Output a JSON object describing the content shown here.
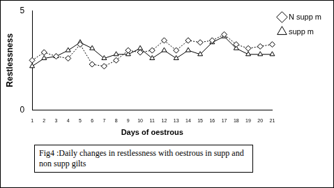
{
  "chart_data": {
    "type": "line",
    "title": "Fig4 :Daily changes in restlessness with oestrous in supp and non supp gilts",
    "x_label": "Days of oestrous",
    "y_label": "Restlessness",
    "categories": [
      "1",
      "2",
      "3",
      "4",
      "5",
      "6",
      "7",
      "8",
      "9",
      "10",
      "11",
      "12",
      "13",
      "14",
      "15",
      "16",
      "17",
      "18",
      "19",
      "20",
      "21"
    ],
    "series": [
      {
        "name": "N supp m",
        "color": "#000000",
        "marker": "diamond",
        "line_style": "dotted",
        "values": [
          2.5,
          2.9,
          2.7,
          2.6,
          3.3,
          2.3,
          2.2,
          2.5,
          3.0,
          2.9,
          3.0,
          3.5,
          3.0,
          3.5,
          3.4,
          3.5,
          3.8,
          3.3,
          3.1,
          3.2,
          3.3
        ]
      },
      {
        "name": "supp m",
        "color": "#000000",
        "marker": "triangle",
        "line_style": "solid",
        "values": [
          2.2,
          2.6,
          2.7,
          3.0,
          3.4,
          3.1,
          2.6,
          2.8,
          2.8,
          3.1,
          2.6,
          3.0,
          2.6,
          3.0,
          2.8,
          3.4,
          3.7,
          3.1,
          2.8,
          2.8,
          2.8
        ]
      }
    ],
    "ylim": [
      0,
      5
    ],
    "yticks": [
      0,
      5
    ],
    "grid": false,
    "legend": "right"
  }
}
